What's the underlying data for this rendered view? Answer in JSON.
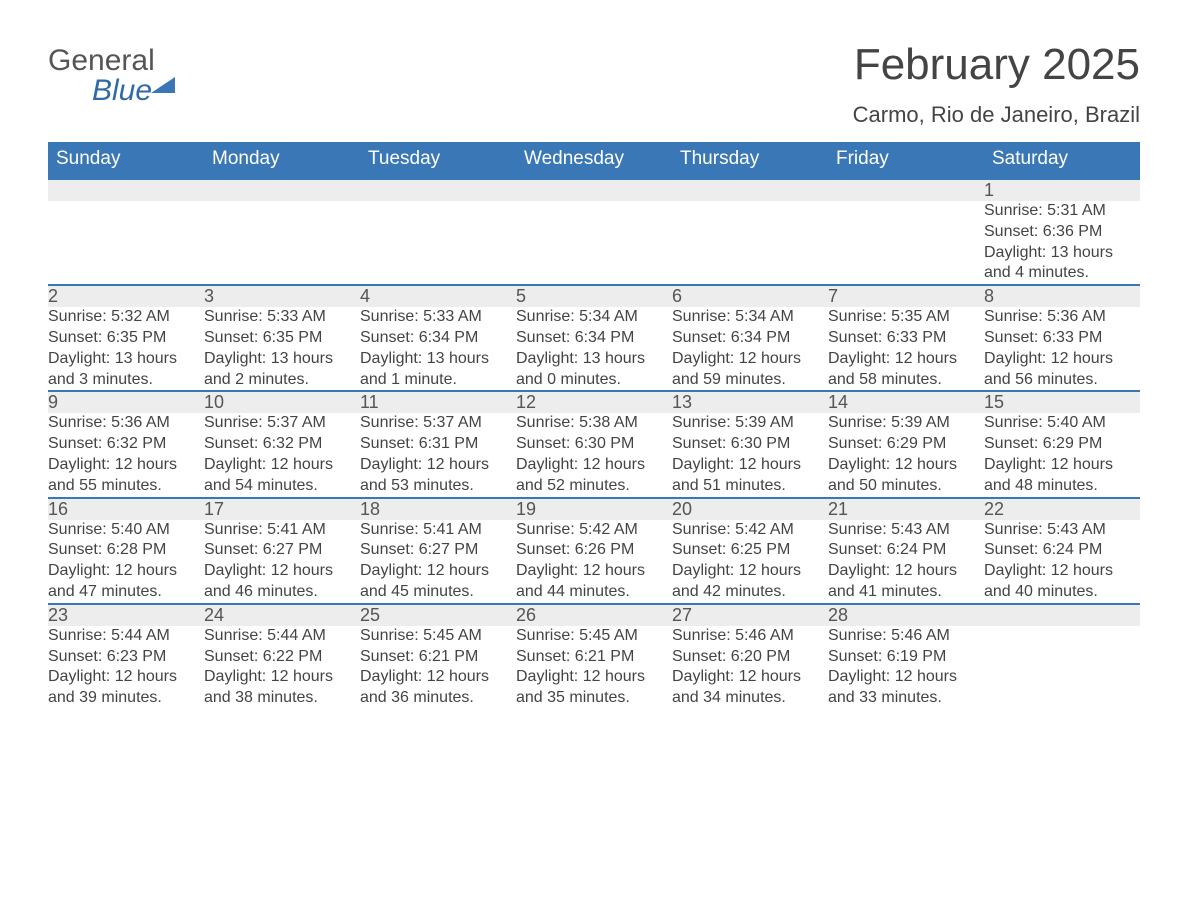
{
  "brand": {
    "general": "General",
    "blue": "Blue"
  },
  "title": "February 2025",
  "location": "Carmo, Rio de Janeiro, Brazil",
  "colors": {
    "header_bg": "#3a77b6",
    "header_text": "#ffffff",
    "daynum_bg": "#ededed",
    "rule": "#3a77b6",
    "text": "#444444",
    "page_bg": "#ffffff"
  },
  "columns": [
    "Sunday",
    "Monday",
    "Tuesday",
    "Wednesday",
    "Thursday",
    "Friday",
    "Saturday"
  ],
  "weeks": [
    {
      "days": [
        null,
        null,
        null,
        null,
        null,
        null,
        {
          "n": "1",
          "sunrise": "Sunrise: 5:31 AM",
          "sunset": "Sunset: 6:36 PM",
          "day1": "Daylight: 13 hours",
          "day2": "and 4 minutes."
        }
      ]
    },
    {
      "days": [
        {
          "n": "2",
          "sunrise": "Sunrise: 5:32 AM",
          "sunset": "Sunset: 6:35 PM",
          "day1": "Daylight: 13 hours",
          "day2": "and 3 minutes."
        },
        {
          "n": "3",
          "sunrise": "Sunrise: 5:33 AM",
          "sunset": "Sunset: 6:35 PM",
          "day1": "Daylight: 13 hours",
          "day2": "and 2 minutes."
        },
        {
          "n": "4",
          "sunrise": "Sunrise: 5:33 AM",
          "sunset": "Sunset: 6:34 PM",
          "day1": "Daylight: 13 hours",
          "day2": "and 1 minute."
        },
        {
          "n": "5",
          "sunrise": "Sunrise: 5:34 AM",
          "sunset": "Sunset: 6:34 PM",
          "day1": "Daylight: 13 hours",
          "day2": "and 0 minutes."
        },
        {
          "n": "6",
          "sunrise": "Sunrise: 5:34 AM",
          "sunset": "Sunset: 6:34 PM",
          "day1": "Daylight: 12 hours",
          "day2": "and 59 minutes."
        },
        {
          "n": "7",
          "sunrise": "Sunrise: 5:35 AM",
          "sunset": "Sunset: 6:33 PM",
          "day1": "Daylight: 12 hours",
          "day2": "and 58 minutes."
        },
        {
          "n": "8",
          "sunrise": "Sunrise: 5:36 AM",
          "sunset": "Sunset: 6:33 PM",
          "day1": "Daylight: 12 hours",
          "day2": "and 56 minutes."
        }
      ]
    },
    {
      "days": [
        {
          "n": "9",
          "sunrise": "Sunrise: 5:36 AM",
          "sunset": "Sunset: 6:32 PM",
          "day1": "Daylight: 12 hours",
          "day2": "and 55 minutes."
        },
        {
          "n": "10",
          "sunrise": "Sunrise: 5:37 AM",
          "sunset": "Sunset: 6:32 PM",
          "day1": "Daylight: 12 hours",
          "day2": "and 54 minutes."
        },
        {
          "n": "11",
          "sunrise": "Sunrise: 5:37 AM",
          "sunset": "Sunset: 6:31 PM",
          "day1": "Daylight: 12 hours",
          "day2": "and 53 minutes."
        },
        {
          "n": "12",
          "sunrise": "Sunrise: 5:38 AM",
          "sunset": "Sunset: 6:30 PM",
          "day1": "Daylight: 12 hours",
          "day2": "and 52 minutes."
        },
        {
          "n": "13",
          "sunrise": "Sunrise: 5:39 AM",
          "sunset": "Sunset: 6:30 PM",
          "day1": "Daylight: 12 hours",
          "day2": "and 51 minutes."
        },
        {
          "n": "14",
          "sunrise": "Sunrise: 5:39 AM",
          "sunset": "Sunset: 6:29 PM",
          "day1": "Daylight: 12 hours",
          "day2": "and 50 minutes."
        },
        {
          "n": "15",
          "sunrise": "Sunrise: 5:40 AM",
          "sunset": "Sunset: 6:29 PM",
          "day1": "Daylight: 12 hours",
          "day2": "and 48 minutes."
        }
      ]
    },
    {
      "days": [
        {
          "n": "16",
          "sunrise": "Sunrise: 5:40 AM",
          "sunset": "Sunset: 6:28 PM",
          "day1": "Daylight: 12 hours",
          "day2": "and 47 minutes."
        },
        {
          "n": "17",
          "sunrise": "Sunrise: 5:41 AM",
          "sunset": "Sunset: 6:27 PM",
          "day1": "Daylight: 12 hours",
          "day2": "and 46 minutes."
        },
        {
          "n": "18",
          "sunrise": "Sunrise: 5:41 AM",
          "sunset": "Sunset: 6:27 PM",
          "day1": "Daylight: 12 hours",
          "day2": "and 45 minutes."
        },
        {
          "n": "19",
          "sunrise": "Sunrise: 5:42 AM",
          "sunset": "Sunset: 6:26 PM",
          "day1": "Daylight: 12 hours",
          "day2": "and 44 minutes."
        },
        {
          "n": "20",
          "sunrise": "Sunrise: 5:42 AM",
          "sunset": "Sunset: 6:25 PM",
          "day1": "Daylight: 12 hours",
          "day2": "and 42 minutes."
        },
        {
          "n": "21",
          "sunrise": "Sunrise: 5:43 AM",
          "sunset": "Sunset: 6:24 PM",
          "day1": "Daylight: 12 hours",
          "day2": "and 41 minutes."
        },
        {
          "n": "22",
          "sunrise": "Sunrise: 5:43 AM",
          "sunset": "Sunset: 6:24 PM",
          "day1": "Daylight: 12 hours",
          "day2": "and 40 minutes."
        }
      ]
    },
    {
      "days": [
        {
          "n": "23",
          "sunrise": "Sunrise: 5:44 AM",
          "sunset": "Sunset: 6:23 PM",
          "day1": "Daylight: 12 hours",
          "day2": "and 39 minutes."
        },
        {
          "n": "24",
          "sunrise": "Sunrise: 5:44 AM",
          "sunset": "Sunset: 6:22 PM",
          "day1": "Daylight: 12 hours",
          "day2": "and 38 minutes."
        },
        {
          "n": "25",
          "sunrise": "Sunrise: 5:45 AM",
          "sunset": "Sunset: 6:21 PM",
          "day1": "Daylight: 12 hours",
          "day2": "and 36 minutes."
        },
        {
          "n": "26",
          "sunrise": "Sunrise: 5:45 AM",
          "sunset": "Sunset: 6:21 PM",
          "day1": "Daylight: 12 hours",
          "day2": "and 35 minutes."
        },
        {
          "n": "27",
          "sunrise": "Sunrise: 5:46 AM",
          "sunset": "Sunset: 6:20 PM",
          "day1": "Daylight: 12 hours",
          "day2": "and 34 minutes."
        },
        {
          "n": "28",
          "sunrise": "Sunrise: 5:46 AM",
          "sunset": "Sunset: 6:19 PM",
          "day1": "Daylight: 12 hours",
          "day2": "and 33 minutes."
        },
        null
      ]
    }
  ]
}
